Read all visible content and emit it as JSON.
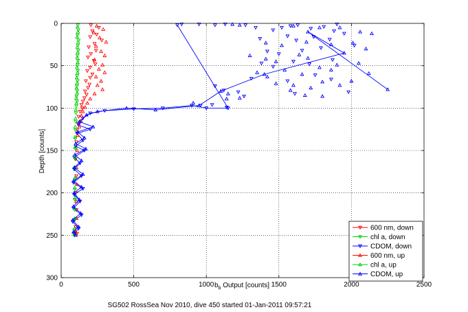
{
  "chart_data": {
    "type": "scatter",
    "title": "",
    "xlabel_base": "b",
    "xlabel_sub": "b",
    "xlabel_rest": " Output [counts]",
    "ylabel": "Depth [counts]",
    "caption": "SG502 RossSea Nov 2010, dive 450 started 01-Jan-2011 09:57:21",
    "xlim": [
      0,
      2500
    ],
    "ylim": [
      0,
      300
    ],
    "y_reversed": true,
    "grid": true,
    "legend_position": "bottom-right",
    "x_ticks": [
      "0",
      "500",
      "1000",
      "1500",
      "2000",
      "2500"
    ],
    "y_ticks": [
      "0",
      "50",
      "100",
      "150",
      "200",
      "250",
      "300"
    ],
    "series": [
      {
        "name": "600 nm, down",
        "color": "#ff0000",
        "marker": "triangle-down",
        "line": false,
        "points": [
          [
            205,
            2
          ],
          [
            260,
            5
          ],
          [
            215,
            9
          ],
          [
            245,
            13
          ],
          [
            200,
            16
          ],
          [
            280,
            20
          ],
          [
            230,
            24
          ],
          [
            190,
            28
          ],
          [
            240,
            32
          ],
          [
            205,
            36
          ],
          [
            185,
            40
          ],
          [
            225,
            44
          ],
          [
            235,
            48
          ],
          [
            200,
            52
          ],
          [
            180,
            56
          ],
          [
            215,
            60
          ],
          [
            200,
            64
          ],
          [
            170,
            68
          ],
          [
            195,
            72
          ],
          [
            185,
            76
          ],
          [
            165,
            80
          ],
          [
            175,
            84
          ],
          [
            160,
            88
          ],
          [
            150,
            92
          ],
          [
            140,
            96
          ],
          [
            145,
            100
          ],
          [
            130,
            104
          ],
          [
            120,
            110
          ],
          [
            115,
            118
          ],
          [
            110,
            126
          ],
          [
            105,
            140
          ],
          [
            100,
            160
          ],
          [
            105,
            180
          ],
          [
            100,
            200
          ],
          [
            105,
            220
          ],
          [
            100,
            240
          ],
          [
            110,
            248
          ]
        ]
      },
      {
        "name": "chl a, down",
        "color": "#00cc00",
        "marker": "triangle-down",
        "line": false,
        "points": [
          [
            115,
            2
          ],
          [
            118,
            8
          ],
          [
            113,
            14
          ],
          [
            120,
            20
          ],
          [
            115,
            26
          ],
          [
            118,
            32
          ],
          [
            112,
            38
          ],
          [
            116,
            44
          ],
          [
            112,
            50
          ],
          [
            115,
            56
          ],
          [
            110,
            62
          ],
          [
            113,
            68
          ],
          [
            108,
            74
          ],
          [
            111,
            80
          ],
          [
            106,
            86
          ],
          [
            109,
            92
          ],
          [
            104,
            98
          ],
          [
            102,
            106
          ],
          [
            100,
            116
          ],
          [
            98,
            126
          ],
          [
            97,
            136
          ],
          [
            98,
            148
          ],
          [
            96,
            160
          ],
          [
            95,
            172
          ],
          [
            96,
            184
          ],
          [
            95,
            196
          ],
          [
            94,
            208
          ],
          [
            93,
            220
          ],
          [
            94,
            232
          ],
          [
            92,
            244
          ],
          [
            92,
            250
          ]
        ]
      },
      {
        "name": "CDOM, down",
        "color": "#0000ff",
        "marker": "triangle-down",
        "line": true,
        "points": [
          [
            800,
            2
          ],
          [
            1150,
            100
          ],
          [
            1000,
            100
          ],
          [
            900,
            97
          ],
          [
            700,
            100
          ],
          [
            500,
            101
          ],
          [
            300,
            103
          ],
          [
            200,
            106
          ],
          [
            150,
            112
          ],
          [
            120,
            120
          ],
          [
            200,
            125
          ],
          [
            110,
            130
          ],
          [
            150,
            138
          ],
          [
            100,
            145
          ],
          [
            160,
            150
          ],
          [
            90,
            158
          ],
          [
            130,
            165
          ],
          [
            90,
            172
          ],
          [
            140,
            180
          ],
          [
            85,
            188
          ],
          [
            150,
            195
          ],
          [
            90,
            202
          ],
          [
            130,
            210
          ],
          [
            85,
            218
          ],
          [
            140,
            226
          ],
          [
            80,
            234
          ],
          [
            120,
            242
          ],
          [
            90,
            248
          ]
        ]
      },
      {
        "name": "600 nm, up",
        "color": "#ff0000",
        "marker": "triangle-up",
        "line": false,
        "points": [
          [
            245,
            3
          ],
          [
            290,
            7
          ],
          [
            225,
            11
          ],
          [
            265,
            17
          ],
          [
            310,
            22
          ],
          [
            240,
            27
          ],
          [
            275,
            33
          ],
          [
            300,
            38
          ],
          [
            230,
            43
          ],
          [
            285,
            49
          ],
          [
            260,
            54
          ],
          [
            300,
            58
          ],
          [
            240,
            63
          ],
          [
            275,
            68
          ],
          [
            250,
            73
          ],
          [
            285,
            78
          ],
          [
            230,
            83
          ],
          [
            200,
            89
          ],
          [
            180,
            94
          ],
          [
            165,
            99
          ],
          [
            150,
            104
          ],
          [
            140,
            109
          ],
          [
            135,
            115
          ],
          [
            125,
            122
          ],
          [
            115,
            132
          ],
          [
            110,
            150
          ],
          [
            105,
            170
          ],
          [
            108,
            190
          ],
          [
            104,
            210
          ],
          [
            106,
            230
          ],
          [
            100,
            246
          ]
        ]
      },
      {
        "name": "chl a, up",
        "color": "#00cc00",
        "marker": "triangle-up",
        "line": false,
        "points": [
          [
            112,
            4
          ],
          [
            116,
            10
          ],
          [
            110,
            16
          ],
          [
            117,
            22
          ],
          [
            111,
            28
          ],
          [
            115,
            34
          ],
          [
            110,
            40
          ],
          [
            114,
            46
          ],
          [
            109,
            52
          ],
          [
            113,
            58
          ],
          [
            107,
            64
          ],
          [
            111,
            70
          ],
          [
            106,
            76
          ],
          [
            110,
            82
          ],
          [
            104,
            88
          ],
          [
            106,
            94
          ],
          [
            101,
            102
          ],
          [
            99,
            112
          ],
          [
            97,
            122
          ],
          [
            96,
            134
          ],
          [
            95,
            146
          ],
          [
            96,
            158
          ],
          [
            94,
            170
          ],
          [
            95,
            182
          ],
          [
            93,
            194
          ],
          [
            94,
            206
          ],
          [
            92,
            218
          ],
          [
            93,
            230
          ],
          [
            91,
            242
          ],
          [
            90,
            249
          ]
        ]
      },
      {
        "name": "CDOM, up",
        "color": "#0000ff",
        "marker": "triangle-up",
        "line": true,
        "points": [
          [
            2250,
            78
          ],
          [
            1700,
            10
          ],
          [
            1950,
            35
          ],
          [
            1400,
            60
          ],
          [
            1100,
            80
          ],
          [
            950,
            97
          ],
          [
            650,
            102
          ],
          [
            450,
            100
          ],
          [
            250,
            104
          ],
          [
            175,
            108
          ],
          [
            125,
            116
          ],
          [
            220,
            122
          ],
          [
            115,
            128
          ],
          [
            160,
            135
          ],
          [
            100,
            142
          ],
          [
            170,
            148
          ],
          [
            95,
            155
          ],
          [
            140,
            162
          ],
          [
            90,
            170
          ],
          [
            150,
            178
          ],
          [
            85,
            186
          ],
          [
            140,
            193
          ],
          [
            90,
            200
          ],
          [
            125,
            208
          ],
          [
            85,
            216
          ],
          [
            135,
            224
          ],
          [
            80,
            232
          ],
          [
            120,
            240
          ],
          [
            85,
            246
          ],
          [
            100,
            250
          ]
        ]
      }
    ],
    "scatter_cloud_down": [
      [
        830,
        1
      ],
      [
        950,
        1
      ],
      [
        1060,
        2
      ],
      [
        1130,
        1
      ],
      [
        1270,
        2
      ],
      [
        1340,
        5
      ],
      [
        1460,
        8
      ],
      [
        1520,
        5
      ],
      [
        1580,
        3
      ],
      [
        1630,
        2
      ],
      [
        1720,
        6
      ],
      [
        1810,
        4
      ],
      [
        1880,
        9
      ],
      [
        1900,
        1
      ],
      [
        1370,
        18
      ],
      [
        1560,
        15
      ],
      [
        1620,
        20
      ],
      [
        1740,
        16
      ],
      [
        1850,
        19
      ],
      [
        1950,
        12
      ],
      [
        1420,
        33
      ],
      [
        1500,
        36
      ],
      [
        1660,
        32
      ],
      [
        1790,
        29
      ],
      [
        2020,
        26
      ],
      [
        1380,
        47
      ],
      [
        1460,
        51
      ],
      [
        1600,
        45
      ],
      [
        1710,
        48
      ],
      [
        1870,
        43
      ],
      [
        1310,
        65
      ],
      [
        1560,
        68
      ],
      [
        1750,
        61
      ],
      [
        1860,
        66
      ],
      [
        1060,
        74
      ],
      [
        1120,
        79
      ],
      [
        1220,
        81
      ],
      [
        1610,
        83
      ],
      [
        1980,
        81
      ],
      [
        960,
        97
      ],
      [
        1040,
        96
      ],
      [
        1140,
        99
      ],
      [
        1260,
        86
      ]
    ],
    "scatter_cloud_up": [
      [
        1180,
        1
      ],
      [
        1230,
        2
      ],
      [
        1600,
        3
      ],
      [
        1780,
        5
      ],
      [
        1920,
        5
      ],
      [
        2060,
        10
      ],
      [
        2140,
        12
      ],
      [
        1410,
        23
      ],
      [
        1520,
        26
      ],
      [
        1690,
        22
      ],
      [
        1860,
        25
      ],
      [
        2010,
        23
      ],
      [
        2100,
        30
      ],
      [
        1300,
        38
      ],
      [
        1410,
        42
      ],
      [
        1480,
        45
      ],
      [
        1640,
        37
      ],
      [
        1700,
        41
      ],
      [
        1780,
        52
      ],
      [
        1900,
        49
      ],
      [
        2050,
        47
      ],
      [
        1350,
        58
      ],
      [
        1420,
        63
      ],
      [
        1540,
        55
      ],
      [
        1660,
        60
      ],
      [
        1860,
        55
      ],
      [
        2120,
        59
      ],
      [
        1480,
        71
      ],
      [
        1600,
        73
      ],
      [
        1720,
        76
      ],
      [
        1800,
        69
      ],
      [
        1920,
        73
      ],
      [
        2000,
        68
      ],
      [
        1150,
        83
      ],
      [
        1230,
        88
      ],
      [
        1580,
        79
      ],
      [
        1680,
        85
      ],
      [
        1800,
        86
      ],
      [
        910,
        94
      ],
      [
        1140,
        89
      ]
    ]
  }
}
